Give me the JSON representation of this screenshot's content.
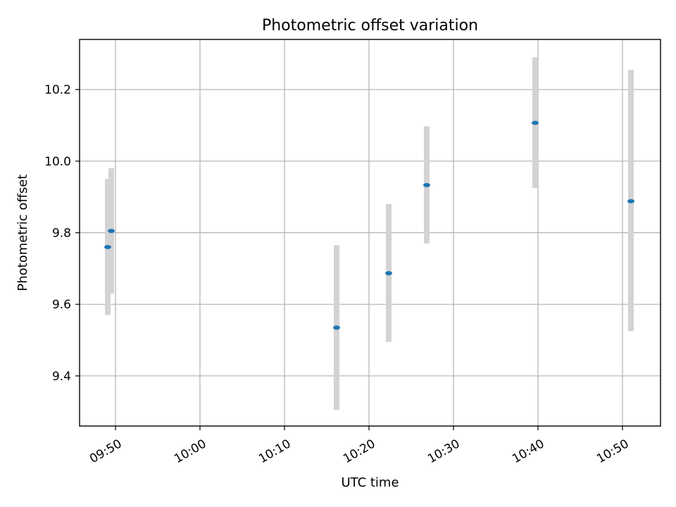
{
  "chart_data": {
    "type": "scatter",
    "title": "Photometric offset variation",
    "xlabel": "UTC time",
    "ylabel": "Photometric offset",
    "grid": true,
    "x_tick_labels": [
      "09:50",
      "10:00",
      "10:10",
      "10:20",
      "10:30",
      "10:40",
      "10:50"
    ],
    "y_tick_labels": [
      "9.4",
      "9.6",
      "9.8",
      "10.0",
      "10.2"
    ],
    "y_ticks": [
      9.4,
      9.6,
      9.8,
      10.0,
      10.2
    ],
    "xlim": [
      "09:45:45",
      "10:54:30"
    ],
    "ylim": [
      9.26,
      10.34
    ],
    "series": [
      {
        "marker_color": "#1f77b4",
        "errorbar_color": "#d3d3d3",
        "points": [
          {
            "t": "09:49:05",
            "y": 9.76,
            "err_low": 9.57,
            "err_high": 9.95
          },
          {
            "t": "09:49:30",
            "y": 9.805,
            "err_low": 9.63,
            "err_high": 9.98
          },
          {
            "t": "10:16:10",
            "y": 9.535,
            "err_low": 9.305,
            "err_high": 9.765
          },
          {
            "t": "10:22:20",
            "y": 9.687,
            "err_low": 9.495,
            "err_high": 9.88
          },
          {
            "t": "10:26:50",
            "y": 9.933,
            "err_low": 9.77,
            "err_high": 10.097
          },
          {
            "t": "10:39:40",
            "y": 10.107,
            "err_low": 9.925,
            "err_high": 10.29
          },
          {
            "t": "10:51:00",
            "y": 9.888,
            "err_low": 9.525,
            "err_high": 10.255
          }
        ]
      }
    ]
  }
}
